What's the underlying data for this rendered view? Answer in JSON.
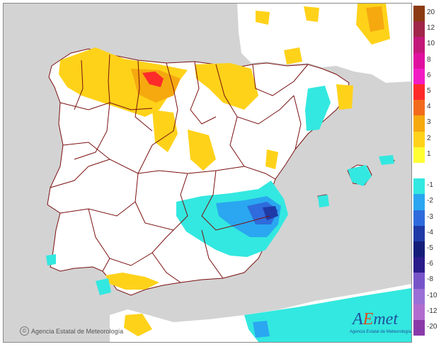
{
  "map": {
    "credit_text": "Agencia Estatal de Meteorología",
    "copyright_symbol": "©",
    "logo": {
      "word_a": "A",
      "word_e": "E",
      "word_rest": "met",
      "subtitle": "Agencia Estatal de Meteorología"
    },
    "colors": {
      "sea": "#d3d3d3",
      "land": "#ffffff",
      "border": "#7a0f0f"
    }
  },
  "legend": {
    "items": [
      {
        "label": "20",
        "color": "#8b3a12"
      },
      {
        "label": "12",
        "color": "#a0264a"
      },
      {
        "label": "10",
        "color": "#c2187a"
      },
      {
        "label": "8",
        "color": "#e0109f"
      },
      {
        "label": "6",
        "color": "#f21cc4"
      },
      {
        "label": "5",
        "color": "#ff2a2a"
      },
      {
        "label": "4",
        "color": "#f26b1c"
      },
      {
        "label": "3",
        "color": "#f5a90f"
      },
      {
        "label": "2",
        "color": "#ffd21a"
      },
      {
        "label": "1",
        "color": "#ffff33"
      },
      {
        "label": "",
        "color": "#ffffff"
      },
      {
        "label": "-1",
        "color": "#33e8e0"
      },
      {
        "label": "-2",
        "color": "#2aa7f0"
      },
      {
        "label": "-3",
        "color": "#2f6bdc"
      },
      {
        "label": "-4",
        "color": "#1f3aa6"
      },
      {
        "label": "-5",
        "color": "#141e78"
      },
      {
        "label": "-6",
        "color": "#2a1c8a"
      },
      {
        "label": "-8",
        "color": "#7755c9"
      },
      {
        "label": "-10",
        "color": "#9a6fd6"
      },
      {
        "label": "-12",
        "color": "#b26ccf"
      },
      {
        "label": "-20",
        "color": "#8a3aa8"
      }
    ]
  }
}
